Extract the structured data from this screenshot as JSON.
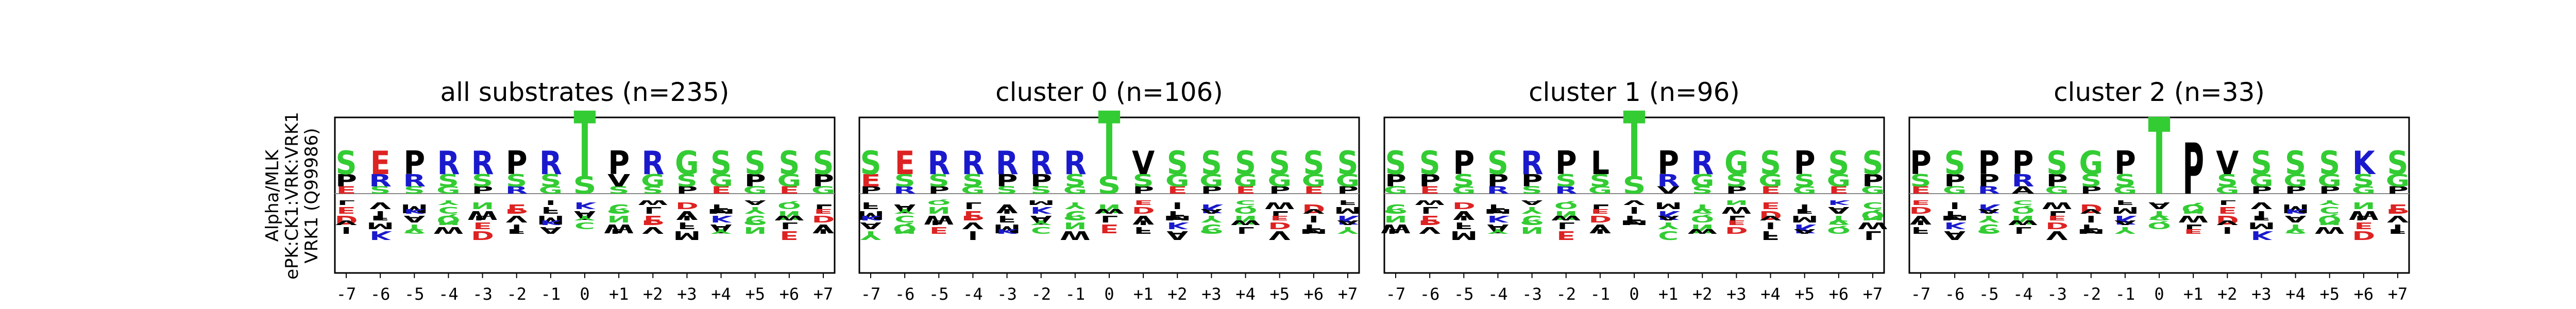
{
  "figure": {
    "ylabel_lines": [
      "Alpha/MLK",
      "ePK:CK1:VRK:VRK1",
      "VRK1 (Q99986)"
    ]
  },
  "colors": {
    "polar_green": "#33cc33",
    "basic_blue": "#1a1acc",
    "hydrophobic_black": "#000000",
    "acidic_red": "#dd2222",
    "amide_purple": "#aa33aa",
    "frame": "#000000"
  },
  "chart_data": [
    {
      "type": "logo",
      "title": "all substrates (n=235)",
      "positions": [
        "-7",
        "-6",
        "-5",
        "-4",
        "-3",
        "-2",
        "-1",
        "0",
        "+1",
        "+2",
        "+3",
        "+4",
        "+5",
        "+6",
        "+7"
      ],
      "top_residues": [
        [
          "S",
          "P",
          "E"
        ],
        [
          "E",
          "R",
          "S"
        ],
        [
          "P",
          "R",
          "S"
        ],
        [
          "R",
          "S",
          "G"
        ],
        [
          "R",
          "S",
          "P"
        ],
        [
          "P",
          "S",
          "R"
        ],
        [
          "R",
          "S",
          "G"
        ],
        [
          "T",
          "S"
        ],
        [
          "P",
          "V",
          "S"
        ],
        [
          "R",
          "G",
          "S"
        ],
        [
          "G",
          "S",
          "P"
        ],
        [
          "S",
          "G",
          "E"
        ],
        [
          "S",
          "P",
          "G"
        ],
        [
          "S",
          "G",
          "E"
        ],
        [
          "S",
          "P",
          "G"
        ]
      ]
    },
    {
      "type": "logo",
      "title": "cluster 0 (n=106)",
      "positions": [
        "-7",
        "-6",
        "-5",
        "-4",
        "-3",
        "-2",
        "-1",
        "0",
        "+1",
        "+2",
        "+3",
        "+4",
        "+5",
        "+6",
        "+7"
      ],
      "top_residues": [
        [
          "S",
          "E",
          "P"
        ],
        [
          "E",
          "S",
          "R"
        ],
        [
          "R",
          "S",
          "P"
        ],
        [
          "R",
          "S",
          "G"
        ],
        [
          "R",
          "P",
          "S"
        ],
        [
          "R",
          "P",
          "S"
        ],
        [
          "R",
          "S",
          "G"
        ],
        [
          "T",
          "S"
        ],
        [
          "V",
          "S",
          "P"
        ],
        [
          "S",
          "G",
          "E"
        ],
        [
          "S",
          "G",
          "P"
        ],
        [
          "S",
          "G",
          "E"
        ],
        [
          "S",
          "G",
          "P"
        ],
        [
          "S",
          "G",
          "E"
        ],
        [
          "S",
          "G",
          "P"
        ]
      ]
    },
    {
      "type": "logo",
      "title": "cluster 1 (n=96)",
      "positions": [
        "-7",
        "-6",
        "-5",
        "-4",
        "-3",
        "-2",
        "-1",
        "0",
        "+1",
        "+2",
        "+3",
        "+4",
        "+5",
        "+6",
        "+7"
      ],
      "top_residues": [
        [
          "S",
          "P",
          "G"
        ],
        [
          "S",
          "P",
          "E"
        ],
        [
          "P",
          "S",
          "G"
        ],
        [
          "S",
          "P",
          "R"
        ],
        [
          "R",
          "P",
          "S"
        ],
        [
          "P",
          "S",
          "R"
        ],
        [
          "L",
          "S",
          "G"
        ],
        [
          "T",
          "S"
        ],
        [
          "P",
          "R",
          "V"
        ],
        [
          "R",
          "G",
          "S"
        ],
        [
          "G",
          "S",
          "P"
        ],
        [
          "S",
          "G",
          "E"
        ],
        [
          "P",
          "S",
          "G"
        ],
        [
          "S",
          "G",
          "E"
        ],
        [
          "S",
          "P",
          "G"
        ]
      ]
    },
    {
      "type": "logo",
      "title": "cluster 2 (n=33)",
      "positions": [
        "-7",
        "-6",
        "-5",
        "-4",
        "-3",
        "-2",
        "-1",
        "0",
        "+1",
        "+2",
        "+3",
        "+4",
        "+5",
        "+6",
        "+7"
      ],
      "top_residues": [
        [
          "P",
          "S",
          "E"
        ],
        [
          "S",
          "P",
          "G"
        ],
        [
          "P",
          "P",
          "R"
        ],
        [
          "P",
          "R",
          "A"
        ],
        [
          "S",
          "P",
          "G"
        ],
        [
          "G",
          "S",
          "P"
        ],
        [
          "P",
          "S",
          "G"
        ],
        [
          "T"
        ],
        [
          "P"
        ],
        [
          "V",
          "S",
          "G"
        ],
        [
          "S",
          "G",
          "P"
        ],
        [
          "S",
          "G",
          "P"
        ],
        [
          "S",
          "G",
          "P"
        ],
        [
          "K",
          "S",
          "G"
        ],
        [
          "S",
          "G",
          "P"
        ]
      ]
    }
  ]
}
